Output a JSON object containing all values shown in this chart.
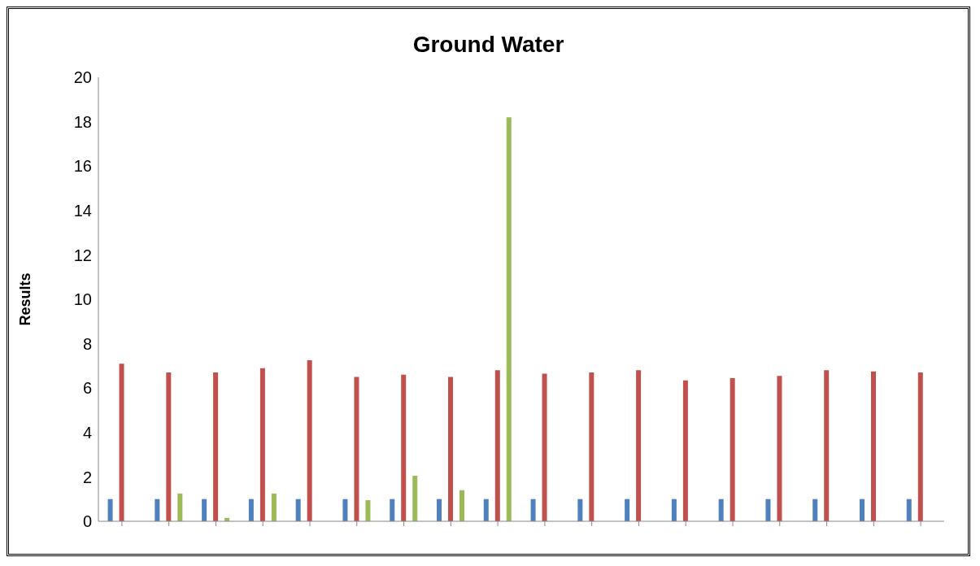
{
  "chart_data": {
    "type": "bar",
    "title": "Ground Water",
    "ylabel": "Results",
    "categories": [
      null,
      null,
      null,
      null,
      null,
      null,
      null,
      null,
      null,
      null,
      null,
      null,
      null,
      null,
      null,
      null,
      null,
      null
    ],
    "series": [
      {
        "color": "#4f81bd",
        "values": [
          1,
          1,
          1,
          1,
          1,
          1,
          1,
          1,
          1,
          1,
          1,
          1,
          1,
          1,
          1,
          1,
          1,
          1
        ]
      },
      {
        "color": "#c0504d",
        "values": [
          7.1,
          6.7,
          6.7,
          6.9,
          7.25,
          6.5,
          6.6,
          6.5,
          6.8,
          6.65,
          6.7,
          6.8,
          6.35,
          6.45,
          6.55,
          6.8,
          6.75,
          6.7
        ]
      },
      {
        "color": "#9bbb59",
        "values": [
          null,
          1.25,
          0.15,
          1.25,
          null,
          0.95,
          2.05,
          1.4,
          18.2,
          null,
          null,
          null,
          null,
          null,
          null,
          null,
          null,
          null
        ]
      }
    ],
    "ylim": [
      0,
      20
    ],
    "yticks": [
      0,
      2,
      4,
      6,
      8,
      10,
      12,
      14,
      16,
      18,
      20
    ],
    "grid": false,
    "legend": false
  }
}
